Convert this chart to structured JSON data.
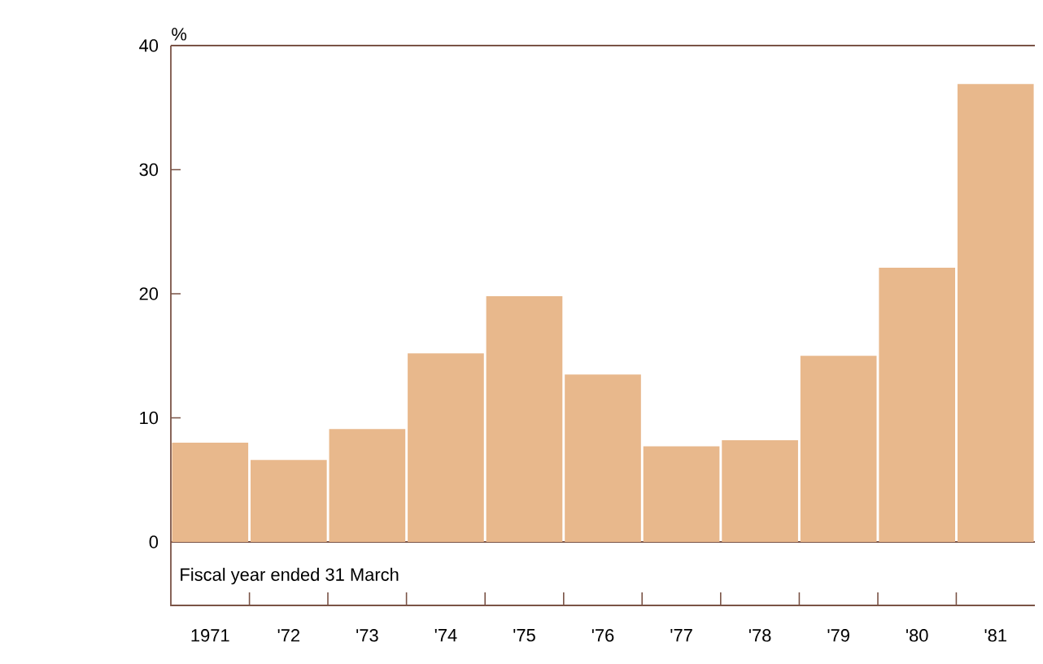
{
  "chart_data": {
    "type": "bar",
    "ylabel": "%",
    "xlabel": "Fiscal year ended 31 March",
    "categories": [
      "1971",
      "'72",
      "'73",
      "'74",
      "'75",
      "'76",
      "'77",
      "'78",
      "'79",
      "'80",
      "'81"
    ],
    "values": [
      8.0,
      6.6,
      9.1,
      15.2,
      19.8,
      13.5,
      7.7,
      8.2,
      15.0,
      22.1,
      36.9
    ],
    "color": "#e8b88c",
    "ylim": [
      0,
      40
    ],
    "yticks": [
      0,
      10,
      20,
      30,
      40
    ],
    "grid": false
  }
}
